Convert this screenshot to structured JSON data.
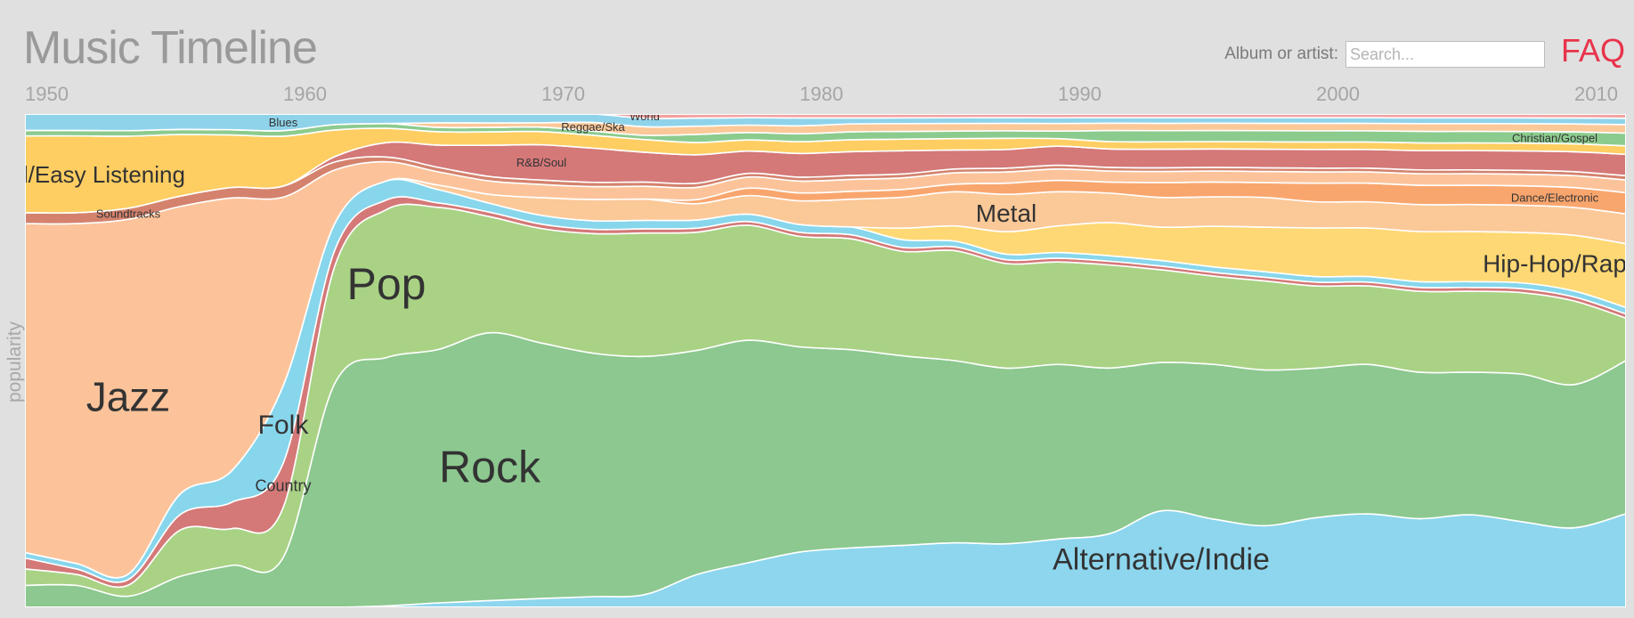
{
  "header": {
    "title": "Music Timeline",
    "search_label": "Album or artist:",
    "search_placeholder": "Search...",
    "faq_label": "FAQ"
  },
  "chart_data": {
    "type": "area",
    "subtype": "stacked streamgraph",
    "ylabel": "popularity",
    "x_ticks": [
      "1950",
      "1960",
      "1970",
      "1980",
      "1990",
      "2000",
      "2010"
    ],
    "x": [
      1950,
      1952,
      1954,
      1956,
      1958,
      1960,
      1962,
      1964,
      1966,
      1968,
      1970,
      1972,
      1974,
      1976,
      1978,
      1980,
      1982,
      1984,
      1986,
      1988,
      1990,
      1992,
      1994,
      1996,
      1998,
      2000,
      2002,
      2004,
      2006,
      2008,
      2010,
      2012
    ],
    "series": [
      {
        "name": "Alternative/Indie",
        "color": "#8dd6ee",
        "label_size": 34,
        "values": [
          0,
          0,
          0,
          0,
          0,
          0,
          0,
          0.3,
          1,
          1.5,
          2,
          2.5,
          3,
          8,
          12,
          14,
          15,
          16,
          17,
          17,
          18,
          20,
          26,
          24,
          22,
          24,
          25,
          23,
          24,
          22,
          20,
          22
        ]
      },
      {
        "name": "Rock",
        "color": "#8cc88f",
        "label_size": 50,
        "values": [
          4,
          4,
          2,
          6,
          8,
          9,
          42,
          52,
          57,
          60,
          58,
          57,
          56,
          55,
          60,
          52,
          50,
          49,
          48,
          47,
          46,
          45,
          40,
          42,
          42,
          40,
          40,
          38,
          37,
          38,
          36,
          36
        ]
      },
      {
        "name": "Pop",
        "color": "#a9d285",
        "label_size": 50,
        "values": [
          3,
          2,
          2,
          9,
          7,
          9,
          22,
          31,
          32,
          26,
          26,
          28,
          29,
          29,
          31,
          28,
          28,
          27,
          29,
          28,
          27,
          28,
          25,
          24,
          24,
          22,
          21,
          21,
          21,
          21,
          21,
          10
        ]
      },
      {
        "name": "Country",
        "color": "#d47878",
        "label_size": 18,
        "values": [
          2,
          1,
          1,
          3,
          5,
          8,
          3,
          2,
          1,
          1,
          1,
          1,
          1,
          1,
          1,
          1,
          1,
          1,
          1,
          1,
          1,
          1,
          1,
          1,
          1,
          1,
          1,
          1,
          1,
          1,
          1,
          1
        ]
      },
      {
        "name": "Folk",
        "color": "#87d6ec",
        "label_size": 30,
        "values": [
          1,
          1,
          1,
          4,
          6,
          14,
          5,
          4,
          3,
          2,
          2,
          2,
          2,
          2,
          2,
          2,
          2,
          2,
          1.5,
          1.5,
          1.5,
          1.5,
          1.5,
          1.5,
          1.5,
          1.5,
          1.5,
          1.5,
          1.5,
          1.5,
          1.5,
          1.5
        ]
      },
      {
        "name": "Hip-Hop/Rap",
        "color": "#fed874",
        "label_size": 28,
        "values": [
          0,
          0,
          0,
          0,
          0,
          0,
          0,
          0,
          0,
          0,
          0,
          0,
          0,
          0,
          0,
          0,
          0,
          3,
          4,
          6,
          7,
          9,
          9,
          11,
          12,
          13,
          13,
          13,
          13,
          13,
          14,
          15
        ]
      },
      {
        "name": "Metal",
        "color": "#fbc898",
        "label_size": 28,
        "values": [
          0,
          0,
          0,
          0,
          0,
          0,
          0,
          0,
          1,
          2,
          4,
          5,
          5,
          4,
          5,
          6,
          7,
          8,
          9,
          10,
          9,
          8,
          8,
          8,
          8,
          7,
          7,
          7,
          7,
          7,
          7,
          7
        ]
      },
      {
        "name": "Dance/Electronic",
        "color": "#f9a66e",
        "label_size": 13,
        "values": [
          0,
          0,
          0,
          0,
          0,
          0,
          0,
          0,
          0,
          0,
          0,
          0,
          0,
          1,
          2,
          2,
          2,
          2,
          2,
          3,
          3,
          3,
          4,
          4,
          4,
          5,
          5,
          5,
          5,
          5,
          5,
          5
        ]
      },
      {
        "name": "Jazz",
        "color": "#fcc39a",
        "label_size": 46,
        "values": [
          60,
          62,
          64,
          56,
          52,
          34,
          10,
          4,
          3,
          3,
          3,
          3,
          3,
          3,
          3,
          3,
          3,
          3,
          3,
          3,
          3,
          3,
          3,
          3,
          3,
          3,
          3,
          3,
          3,
          3,
          3,
          3
        ]
      },
      {
        "name": "Soundtracks",
        "color": "#d4826d",
        "label_size": 13,
        "values": [
          2,
          2,
          2,
          2,
          2,
          2,
          1.5,
          1,
          1,
          1,
          1,
          1,
          1,
          1,
          1,
          1,
          1,
          1,
          1,
          1,
          1,
          1,
          1,
          1,
          1,
          1,
          1,
          1,
          1,
          1,
          1,
          1
        ]
      },
      {
        "name": "R&B/Soul",
        "color": "#d47878",
        "label_size": 13,
        "values": [
          0,
          0,
          0,
          0,
          0,
          0,
          1,
          3,
          5,
          7,
          8,
          8,
          7,
          7,
          6,
          6,
          6,
          6,
          5,
          5,
          5,
          5,
          5,
          5,
          5,
          5,
          5,
          5,
          5,
          5,
          5,
          5
        ]
      },
      {
        "name": "Vocal/Easy Listening",
        "color": "#fece62",
        "label_size": 26,
        "values": [
          14,
          14,
          13,
          12,
          10,
          9,
          5,
          3,
          3,
          3,
          3,
          3,
          3,
          3,
          3,
          3,
          3,
          3,
          3,
          3,
          2,
          2,
          2,
          2,
          2,
          2,
          2,
          2,
          2,
          2,
          2,
          2
        ]
      },
      {
        "name": "Christian/Gospel",
        "color": "#8ccb8e",
        "label_size": 13,
        "values": [
          1,
          1,
          1,
          1,
          1,
          1,
          1,
          1,
          1,
          1,
          1,
          1,
          1,
          2,
          2,
          2,
          2,
          2,
          2,
          2,
          2,
          3,
          3,
          3,
          3,
          3,
          3,
          3,
          3,
          3,
          3,
          3
        ]
      },
      {
        "name": "Reggae/Ska",
        "color": "#fbc898",
        "label_size": 13,
        "values": [
          0,
          0,
          0,
          0,
          0,
          0,
          0,
          0,
          1,
          1,
          1,
          2,
          2,
          2,
          2,
          2,
          2,
          2,
          2,
          2,
          2,
          2,
          2,
          2,
          2,
          2,
          2,
          2,
          2,
          2,
          2,
          2
        ]
      },
      {
        "name": "Blues",
        "color": "#8fd3ea",
        "label_size": 13,
        "values": [
          3,
          3,
          3,
          3,
          3,
          3,
          2,
          2,
          2,
          2,
          2,
          2,
          2,
          2,
          2,
          2,
          1.5,
          1.5,
          1.5,
          1.5,
          1.5,
          1.5,
          1.5,
          1.5,
          1.5,
          1.5,
          1.5,
          1.5,
          1.5,
          1.5,
          1.5,
          1.5
        ]
      },
      {
        "name": "World",
        "color": "#f3a2a0",
        "label_size": 13,
        "values": [
          0,
          0,
          0,
          0,
          0,
          0,
          0,
          0,
          0,
          0,
          0,
          0,
          1,
          1,
          1,
          1,
          1,
          1,
          1,
          1,
          1,
          1,
          1,
          1,
          1,
          1,
          1,
          1,
          1,
          1,
          1,
          1
        ]
      }
    ]
  }
}
